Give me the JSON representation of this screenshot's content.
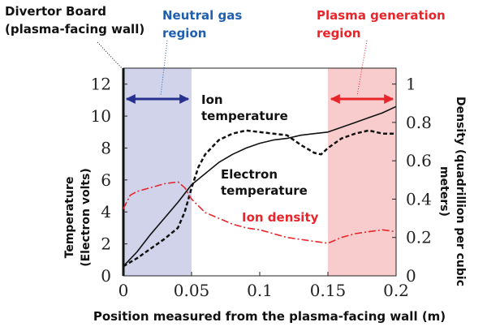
{
  "chart_data": {
    "type": "line",
    "xlabel": "Position measured from the plasma-facing wall (m)",
    "ylabel_left": [
      "Temperature",
      "(Electron volts)"
    ],
    "ylabel_right": [
      "Density (quadrillion per cubic",
      "meters)"
    ],
    "xlim": [
      0,
      0.2
    ],
    "ylim_left": [
      0,
      13
    ],
    "ylim_right": [
      0,
      1.083
    ],
    "x_ticks": [
      "0",
      "0.05",
      "0.1",
      "0.15",
      "0.2"
    ],
    "y_left_ticks": [
      "0",
      "2",
      "4",
      "6",
      "8",
      "10",
      "12"
    ],
    "y_right_ticks": [
      "0",
      "0.2",
      "0.4",
      "0.6",
      "0.8",
      "1"
    ],
    "regions": [
      {
        "label": [
          "Neutral gas",
          "region"
        ],
        "x_range": [
          0,
          0.05
        ],
        "color": "#c9cbe6",
        "label_color": "#1f5fb0",
        "arrow_color": "#26308f"
      },
      {
        "label": [
          "Plasma generation",
          "region"
        ],
        "x_range": [
          0.15,
          0.2
        ],
        "color": "#f7c3c3",
        "label_color": "#e8252a",
        "arrow_color": "#e8252a"
      }
    ],
    "wall_label": [
      "Divertor Board",
      "(plasma-facing wall)"
    ],
    "series": [
      {
        "name": [
          "Ion",
          "temperature"
        ],
        "axis": "left",
        "style": "dashed",
        "color": "#111111",
        "x": [
          0,
          0.01,
          0.02,
          0.03,
          0.04,
          0.045,
          0.05,
          0.055,
          0.06,
          0.07,
          0.08,
          0.09,
          0.1,
          0.11,
          0.12,
          0.13,
          0.14,
          0.145,
          0.15,
          0.16,
          0.17,
          0.18,
          0.19,
          0.2
        ],
        "y": [
          0.6,
          1.1,
          1.7,
          2.3,
          3.0,
          4.0,
          5.5,
          6.8,
          7.6,
          8.5,
          8.9,
          9.1,
          9.0,
          8.9,
          8.8,
          8.2,
          7.7,
          7.6,
          8.0,
          8.6,
          8.9,
          9.1,
          8.9,
          8.9
        ]
      },
      {
        "name": [
          "Electron",
          "temperature"
        ],
        "axis": "left",
        "style": "solid",
        "color": "#111111",
        "x": [
          0,
          0.01,
          0.02,
          0.03,
          0.04,
          0.05,
          0.06,
          0.07,
          0.08,
          0.09,
          0.1,
          0.11,
          0.12,
          0.13,
          0.14,
          0.15,
          0.16,
          0.17,
          0.18,
          0.19,
          0.2
        ],
        "y": [
          0.6,
          1.5,
          2.6,
          3.6,
          4.6,
          5.7,
          6.4,
          7.1,
          7.6,
          8.0,
          8.3,
          8.5,
          8.6,
          8.8,
          8.9,
          9.0,
          9.3,
          9.6,
          9.9,
          10.2,
          10.6
        ]
      },
      {
        "name": [
          "Ion density"
        ],
        "axis": "right",
        "style": "dashdot",
        "color": "#e8252a",
        "x": [
          0,
          0.005,
          0.01,
          0.02,
          0.03,
          0.04,
          0.045,
          0.05,
          0.06,
          0.07,
          0.08,
          0.09,
          0.1,
          0.11,
          0.12,
          0.13,
          0.14,
          0.15,
          0.16,
          0.17,
          0.18,
          0.19,
          0.2
        ],
        "y": [
          0.35,
          0.42,
          0.44,
          0.46,
          0.48,
          0.49,
          0.46,
          0.4,
          0.33,
          0.3,
          0.27,
          0.25,
          0.24,
          0.22,
          0.2,
          0.19,
          0.18,
          0.17,
          0.2,
          0.22,
          0.23,
          0.24,
          0.23
        ]
      }
    ]
  }
}
